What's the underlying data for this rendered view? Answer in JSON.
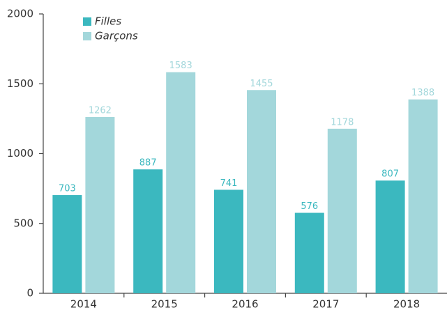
{
  "chart_data": {
    "type": "bar",
    "categories": [
      "2014",
      "2015",
      "2016",
      "2017",
      "2018"
    ],
    "series": [
      {
        "name": "Filles",
        "color": "#3bb8bf",
        "values": [
          703,
          887,
          741,
          576,
          807
        ]
      },
      {
        "name": "Garçons",
        "color": "#a3d7db",
        "values": [
          1262,
          1583,
          1455,
          1178,
          1388
        ]
      }
    ],
    "ylim": [
      0,
      2000
    ],
    "yticks": [
      0,
      500,
      1000,
      1500,
      2000
    ],
    "grid": false,
    "legend": "top-left"
  }
}
